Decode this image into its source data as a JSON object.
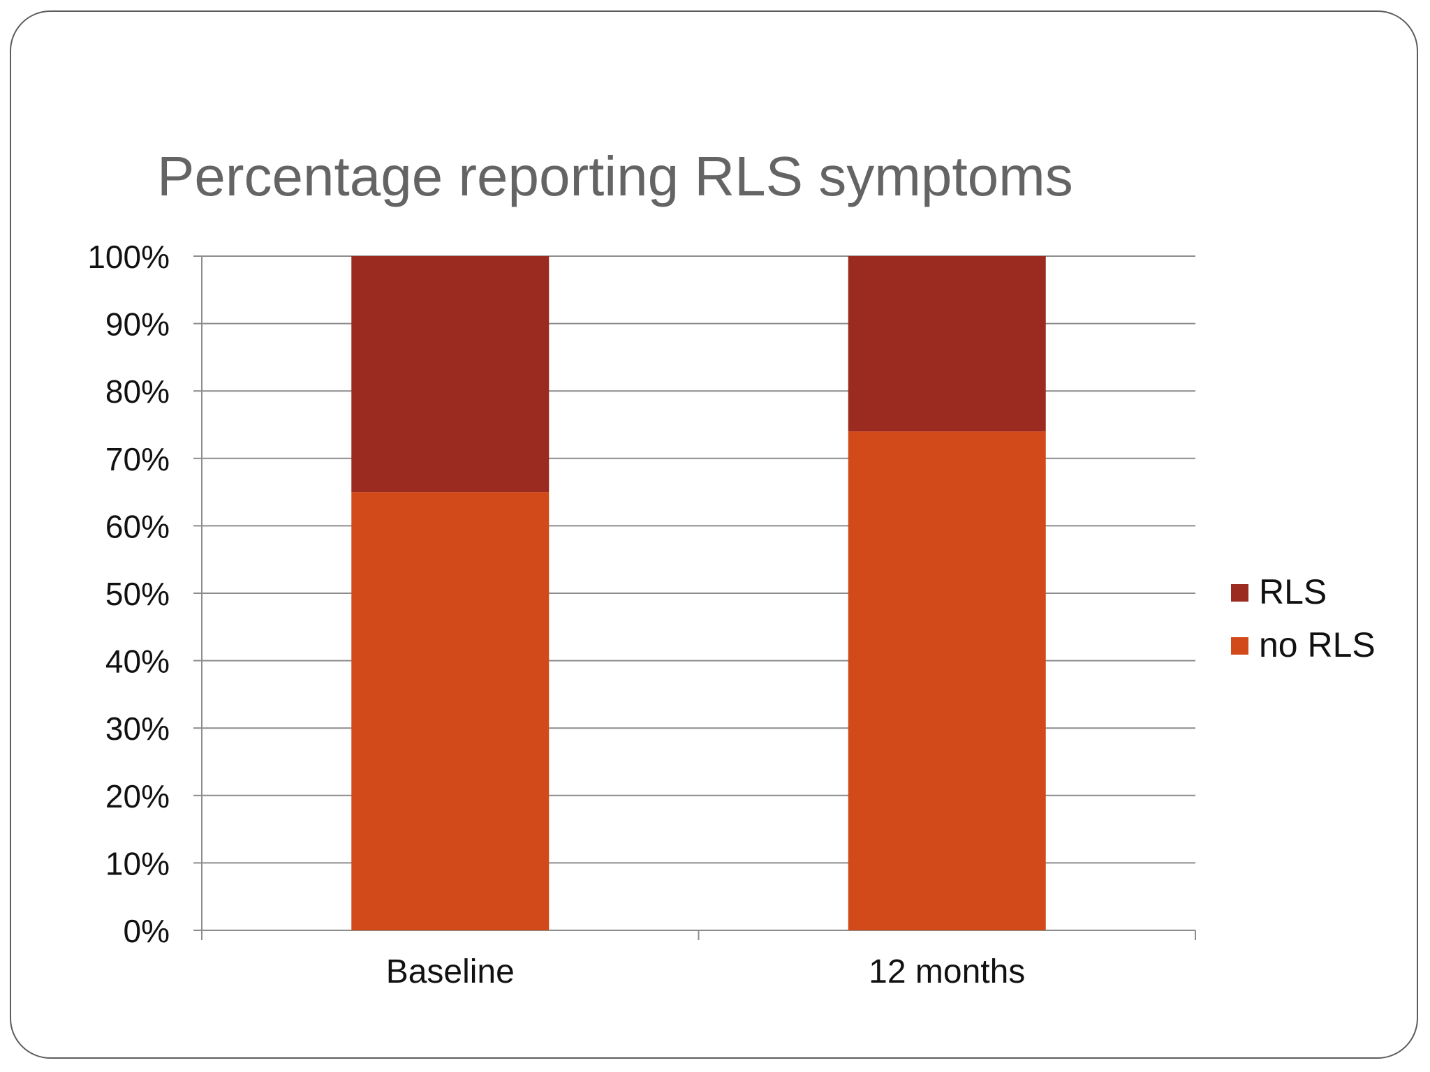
{
  "colors": {
    "rls": "#9b2b21",
    "no_rls": "#d34a1a",
    "grid": "#8c8c8c",
    "axis_text": "#111111",
    "title": "#646464"
  },
  "chart_data": {
    "type": "bar",
    "stacked": true,
    "title": "Percentage reporting RLS symptoms",
    "categories": [
      "Baseline",
      "12 months"
    ],
    "series": [
      {
        "name": "no RLS",
        "values": [
          65,
          74
        ],
        "color_key": "no_rls"
      },
      {
        "name": "RLS",
        "values": [
          35,
          26
        ],
        "color_key": "rls"
      }
    ],
    "ylim": [
      0,
      100
    ],
    "y_ticks": [
      "0%",
      "10%",
      "20%",
      "30%",
      "40%",
      "50%",
      "60%",
      "70%",
      "80%",
      "90%",
      "100%"
    ],
    "y_tick_values": [
      0,
      10,
      20,
      30,
      40,
      50,
      60,
      70,
      80,
      90,
      100
    ],
    "grid": true,
    "legend_position": "right",
    "legend": [
      {
        "name": "RLS",
        "color_key": "rls"
      },
      {
        "name": "no RLS",
        "color_key": "no_rls"
      }
    ]
  }
}
